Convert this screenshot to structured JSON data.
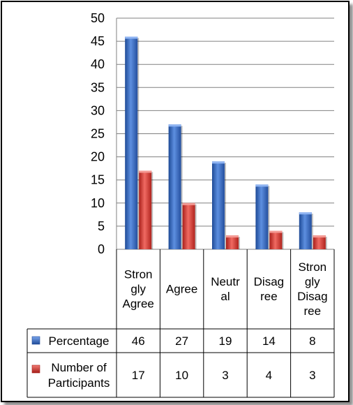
{
  "chart_data": {
    "type": "bar",
    "categories": [
      [
        "Stron",
        "gly",
        "Agree"
      ],
      [
        "Agree"
      ],
      [
        "Neutr",
        "al"
      ],
      [
        "Disag",
        "ree"
      ],
      [
        "Stron",
        "gly",
        "Disag",
        "ree"
      ]
    ],
    "series": [
      {
        "name": "Percentage",
        "legend_lines": [
          "Percentage"
        ],
        "values": [
          46,
          27,
          19,
          14,
          8
        ],
        "color": "#3a6fc4"
      },
      {
        "name": "Number of Participants",
        "legend_lines": [
          "Number of",
          "Participants"
        ],
        "values": [
          17,
          10,
          3,
          4,
          3
        ],
        "color": "#d63b33"
      }
    ],
    "yticks": [
      0,
      5,
      10,
      15,
      20,
      25,
      30,
      35,
      40,
      45,
      50
    ],
    "ylim": [
      0,
      50
    ],
    "grid": true,
    "legend_placement": "data-table",
    "title": "",
    "xlabel": "",
    "ylabel": ""
  }
}
